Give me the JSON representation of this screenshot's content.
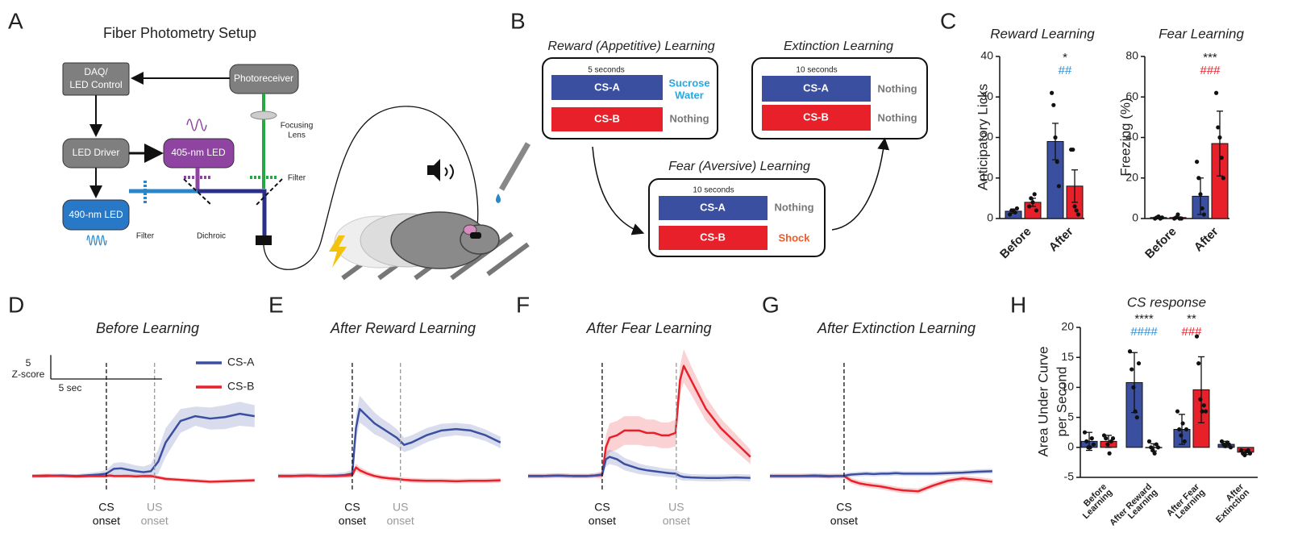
{
  "panel_labels": [
    "A",
    "B",
    "C",
    "D",
    "E",
    "F",
    "G",
    "H"
  ],
  "setup": {
    "title": "Fiber Photometry Setup",
    "daq": [
      "DAQ/",
      "LED Control"
    ],
    "photoreceiver": "Photoreceiver",
    "led_driver": "LED Driver",
    "led_405": "405-nm LED",
    "led_490": "490-nm LED",
    "lens": [
      "Focusing",
      "Lens"
    ],
    "filter_green": "Filter",
    "filter_blue": "Filter",
    "dichroic": "Dichroic"
  },
  "paradigm": {
    "reward": {
      "title": "Reward (Appetitive) Learning",
      "duration": "5 seconds",
      "rows": [
        {
          "cs": "CS-A",
          "us": [
            "Sucrose",
            "Water"
          ]
        },
        {
          "cs": "CS-B",
          "us": [
            "Nothing"
          ]
        }
      ]
    },
    "extinction": {
      "title": "Extinction Learning",
      "duration": "10 seconds",
      "rows": [
        {
          "cs": "CS-A",
          "us": [
            "Nothing"
          ]
        },
        {
          "cs": "CS-B",
          "us": [
            "Nothing"
          ]
        }
      ]
    },
    "fear": {
      "title": "Fear (Aversive) Learning",
      "duration": "10 seconds",
      "rows": [
        {
          "cs": "CS-A",
          "us": [
            "Nothing"
          ]
        },
        {
          "cs": "CS-B",
          "us": [
            "Shock"
          ]
        }
      ]
    }
  },
  "chart_data": [
    {
      "type": "bar",
      "title": "Reward Learning",
      "ylabel": [
        "Anticipatory Licks"
      ],
      "ylim": [
        0,
        40
      ],
      "yticks": [
        0,
        10,
        20,
        30,
        40
      ],
      "categories": [
        [
          "Before"
        ],
        [
          "After"
        ]
      ],
      "series": [
        {
          "color": "#3a4fa0",
          "values": [
            1.8,
            19
          ],
          "errors": [
            0.5,
            4.5
          ],
          "points": [
            [
              1,
              2,
              2,
              1.5,
              2.5
            ],
            [
              31,
              28,
              20,
              14,
              8
            ]
          ]
        },
        {
          "color": "#e8202a",
          "values": [
            4,
            8
          ],
          "errors": [
            1,
            4
          ],
          "points": [
            [
              3,
              5,
              4,
              6,
              2
            ],
            [
              17,
              17,
              3,
              2,
              1
            ]
          ]
        }
      ],
      "annotations": [
        [],
        [
          {
            "text": "*",
            "color": "#222222"
          },
          {
            "text": "##",
            "color": "#2a8fd8"
          }
        ]
      ]
    },
    {
      "type": "bar",
      "title": "Fear Learning",
      "ylabel": [
        "Freezing (%)"
      ],
      "ylim": [
        0,
        80
      ],
      "yticks": [
        0,
        20,
        40,
        60,
        80
      ],
      "categories": [
        [
          "Before"
        ],
        [
          "After"
        ]
      ],
      "series": [
        {
          "color": "#3a4fa0",
          "values": [
            0.5,
            11
          ],
          "errors": [
            0.3,
            9
          ],
          "points": [
            [
              0,
              0.5,
              1,
              0,
              0.5
            ],
            [
              28,
              20,
              12,
              5,
              2
            ]
          ]
        },
        {
          "color": "#e8202a",
          "values": [
            0.5,
            37
          ],
          "errors": [
            0.3,
            16
          ],
          "points": [
            [
              0,
              0.5,
              2,
              0,
              0
            ],
            [
              62,
              45,
              40,
              30,
              20
            ]
          ]
        }
      ],
      "annotations": [
        [],
        [
          {
            "text": "***",
            "color": "#222222"
          },
          {
            "text": "###",
            "color": "#e8202a"
          }
        ]
      ]
    },
    {
      "type": "line",
      "title": "Before Learning",
      "xlim": [
        -10,
        21
      ],
      "ylim": [
        -5,
        27
      ],
      "x": [
        -10,
        -8,
        -6,
        -4,
        -2,
        -1,
        0,
        0.5,
        1,
        2,
        3,
        4,
        5,
        6,
        7,
        8,
        10,
        12,
        14,
        16,
        18,
        20
      ],
      "series": [
        {
          "name": "CS-A",
          "color": "#3a4fa0",
          "values": [
            0,
            0,
            0.1,
            0,
            0.2,
            0.3,
            0.5,
            1,
            1.5,
            1.6,
            1.3,
            1,
            0.8,
            1,
            3,
            7,
            11.5,
            12.5,
            12,
            12.3,
            13,
            12.5
          ],
          "errors": [
            0.4,
            0.4,
            0.4,
            0.4,
            0.5,
            0.6,
            0.8,
            1,
            1.2,
            1.3,
            1.3,
            1.2,
            1.2,
            1.5,
            2.5,
            3,
            2.5,
            2,
            2.3,
            2.5,
            2.5,
            2.3
          ]
        },
        {
          "name": "CS-B",
          "color": "#e8202a",
          "values": [
            0,
            0.1,
            0,
            -0.1,
            0,
            0,
            0,
            0.1,
            0,
            0,
            0,
            -0.1,
            0,
            0,
            -0.3,
            -0.6,
            -0.8,
            -1,
            -1.2,
            -1.1,
            -1,
            -0.9
          ],
          "errors": [
            0.4,
            0.4,
            0.4,
            0.4,
            0.4,
            0.4,
            0.4,
            0.4,
            0.4,
            0.4,
            0.4,
            0.4,
            0.4,
            0.4,
            0.4,
            0.4,
            0.4,
            0.4,
            0.4,
            0.4,
            0.4,
            0.4
          ]
        }
      ],
      "cs_onset": {
        "x": 0,
        "label": [
          "CS",
          "onset"
        ]
      },
      "us_onset": {
        "x": 6.5,
        "label": [
          "US",
          "onset"
        ]
      },
      "scale_bar": {
        "y_value": 5,
        "y_unit": "Z-score",
        "x": {
          "value": 5,
          "label": "5 sec"
        }
      }
    },
    {
      "type": "line",
      "title": "After Reward Learning",
      "xlim": [
        -10,
        21
      ],
      "ylim": [
        -5,
        27
      ],
      "x": [
        -10,
        -8,
        -6,
        -4,
        -2,
        -1,
        0,
        0.5,
        1,
        2,
        3,
        4,
        5,
        6,
        7,
        8,
        10,
        12,
        14,
        16,
        18,
        20
      ],
      "series": [
        {
          "color": "#3a4fa0",
          "values": [
            0,
            0,
            0.1,
            0,
            0.1,
            0.2,
            0.5,
            10,
            14,
            12.5,
            11,
            10,
            9,
            8,
            6.5,
            7,
            8.5,
            9.5,
            9.8,
            9.5,
            8.5,
            7
          ],
          "errors": [
            0.5,
            0.5,
            0.5,
            0.5,
            0.5,
            0.6,
            0.8,
            2.5,
            2.8,
            2.5,
            2.3,
            2,
            2,
            1.8,
            1.5,
            1.5,
            1.5,
            1.4,
            1.3,
            1.3,
            1.2,
            1.2
          ]
        },
        {
          "color": "#e8202a",
          "values": [
            0,
            0,
            0.1,
            0,
            0,
            0.1,
            0.2,
            1.8,
            1.2,
            0.5,
            0,
            -0.3,
            -0.5,
            -0.6,
            -0.8,
            -0.9,
            -1,
            -1,
            -1.1,
            -1,
            -1,
            -0.9
          ],
          "errors": [
            0.4,
            0.4,
            0.4,
            0.4,
            0.4,
            0.4,
            0.5,
            0.8,
            0.7,
            0.6,
            0.5,
            0.5,
            0.5,
            0.5,
            0.5,
            0.5,
            0.5,
            0.5,
            0.5,
            0.5,
            0.5,
            0.5
          ]
        }
      ],
      "cs_onset": {
        "x": 0,
        "label": [
          "CS",
          "onset"
        ]
      },
      "us_onset": {
        "x": 6.5,
        "label": [
          "US",
          "onset"
        ]
      }
    },
    {
      "type": "line",
      "title": "After Fear Learning",
      "xlim": [
        -10,
        21
      ],
      "ylim": [
        -5,
        27
      ],
      "x": [
        -10,
        -8,
        -6,
        -4,
        -2,
        -1,
        0,
        0.5,
        1,
        2,
        3,
        4,
        5,
        6,
        7,
        8,
        9,
        9.9,
        10.5,
        11,
        12,
        14,
        16,
        18,
        20
      ],
      "series": [
        {
          "color": "#e8202a",
          "values": [
            0,
            0,
            0.1,
            0,
            0,
            0.1,
            0.2,
            6,
            8,
            8.5,
            9.5,
            9.5,
            9.5,
            9,
            9,
            8.5,
            8.5,
            9,
            20,
            23,
            20,
            14,
            10,
            7,
            4
          ],
          "errors": [
            0.5,
            0.5,
            0.5,
            0.5,
            0.5,
            0.5,
            0.8,
            2.5,
            3,
            3,
            3,
            3,
            3,
            2.8,
            2.8,
            2.7,
            2.7,
            2.8,
            3,
            3.5,
            3,
            2.5,
            2,
            1.8,
            1.5
          ]
        },
        {
          "color": "#3a4fa0",
          "values": [
            0,
            0,
            0.1,
            0,
            0,
            0.1,
            0.3,
            3.5,
            4,
            3.5,
            2.5,
            2,
            1.5,
            1.2,
            1,
            0.8,
            0.6,
            0.5,
            0,
            -0.2,
            -0.3,
            -0.4,
            -0.4,
            -0.3,
            -0.4
          ],
          "errors": [
            0.4,
            0.4,
            0.4,
            0.4,
            0.4,
            0.4,
            0.5,
            1.5,
            1.5,
            1.4,
            1.3,
            1.2,
            1.1,
            1,
            1,
            0.9,
            0.9,
            0.9,
            0.8,
            0.8,
            0.7,
            0.7,
            0.7,
            0.7,
            0.7
          ]
        }
      ],
      "cs_onset": {
        "x": 0,
        "label": [
          "CS",
          "onset"
        ]
      },
      "us_onset": {
        "x": 10,
        "label": [
          "US",
          "onset"
        ]
      }
    },
    {
      "type": "line",
      "title": "After Extinction Learning",
      "xlim": [
        -10,
        21
      ],
      "ylim": [
        -5,
        27
      ],
      "x": [
        -10,
        -8,
        -6,
        -4,
        -2,
        -1,
        0,
        0.5,
        1,
        2,
        3,
        4,
        5,
        6,
        7,
        8,
        10,
        12,
        14,
        16,
        18,
        20
      ],
      "series": [
        {
          "color": "#e8202a",
          "values": [
            0,
            0,
            0,
            0,
            -0.1,
            0,
            0,
            -0.5,
            -1,
            -1.5,
            -1.8,
            -2,
            -2.2,
            -2.5,
            -2.8,
            -3,
            -3.2,
            -2,
            -1,
            -0.5,
            -0.8,
            -1.2
          ],
          "errors": [
            0.4,
            0.4,
            0.4,
            0.4,
            0.4,
            0.4,
            0.4,
            0.6,
            0.6,
            0.6,
            0.6,
            0.6,
            0.6,
            0.6,
            0.6,
            0.6,
            0.6,
            0.6,
            0.6,
            0.6,
            0.6,
            0.6
          ]
        },
        {
          "color": "#3a4fa0",
          "values": [
            0,
            0,
            0,
            0.1,
            0,
            0,
            0,
            0.2,
            0.3,
            0.4,
            0.5,
            0.4,
            0.5,
            0.5,
            0.6,
            0.5,
            0.5,
            0.5,
            0.6,
            0.7,
            0.9,
            1
          ],
          "errors": [
            0.5,
            0.5,
            0.5,
            0.5,
            0.5,
            0.5,
            0.5,
            0.5,
            0.5,
            0.5,
            0.5,
            0.5,
            0.5,
            0.5,
            0.5,
            0.5,
            0.5,
            0.5,
            0.5,
            0.5,
            0.5,
            0.5
          ]
        }
      ],
      "cs_onset": {
        "x": 0,
        "label": [
          "CS",
          "onset"
        ]
      }
    },
    {
      "type": "bar",
      "title": "CS response",
      "ylabel": [
        "Area Under Curve",
        "per Second"
      ],
      "ylim": [
        -5,
        20
      ],
      "yticks": [
        -5,
        0,
        5,
        10,
        15,
        20
      ],
      "categories": [
        [
          "Before",
          "Learning"
        ],
        [
          "After Reward",
          "Learning"
        ],
        [
          "After Fear",
          "Learning"
        ],
        [
          "After",
          "Extinction"
        ]
      ],
      "series": [
        {
          "color": "#3a4fa0",
          "values": [
            1,
            10.8,
            3,
            0.5
          ],
          "errors": [
            1.5,
            5,
            2.5,
            0.5
          ],
          "points": [
            [
              2.5,
              1,
              0,
              0,
              1.5,
              0.5
            ],
            [
              16,
              13,
              10,
              6,
              5,
              14
            ],
            [
              6,
              3,
              2,
              4,
              1,
              3
            ],
            [
              1,
              0.5,
              0.2,
              0.8,
              0.5,
              0
            ]
          ]
        },
        {
          "color": "#e8202a",
          "values": [
            1,
            0,
            9.6,
            -0.8
          ],
          "errors": [
            1,
            0.6,
            5.5,
            0.4
          ],
          "points": [
            [
              2,
              1.5,
              0.5,
              -1,
              1,
              1.5
            ],
            [
              1,
              0,
              -0.5,
              -1,
              0.5,
              0
            ],
            [
              18.5,
              14,
              8,
              6,
              7,
              6
            ],
            [
              -0.5,
              -1,
              -1.3,
              -0.7,
              -0.5,
              -1
            ]
          ]
        }
      ],
      "annotations": [
        [],
        [
          {
            "text": "****",
            "color": "#222222"
          },
          {
            "text": "####",
            "color": "#2a8fd8"
          }
        ],
        [
          {
            "text": "**",
            "color": "#222222"
          },
          {
            "text": "###",
            "color": "#e8202a"
          }
        ],
        []
      ]
    }
  ]
}
